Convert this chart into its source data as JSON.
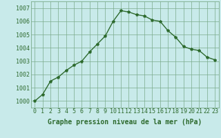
{
  "x": [
    0,
    1,
    2,
    3,
    4,
    5,
    6,
    7,
    8,
    9,
    10,
    11,
    12,
    13,
    14,
    15,
    16,
    17,
    18,
    19,
    20,
    21,
    22,
    23
  ],
  "y": [
    1000.0,
    1000.5,
    1001.5,
    1001.8,
    1002.3,
    1002.7,
    1003.0,
    1003.7,
    1004.3,
    1004.9,
    1006.0,
    1006.8,
    1006.7,
    1006.5,
    1006.4,
    1006.1,
    1006.0,
    1005.3,
    1004.8,
    1004.1,
    1003.9,
    1003.8,
    1003.3,
    1003.1
  ],
  "line_color": "#2d6a2d",
  "marker": "*",
  "marker_size": 3,
  "bg_color": "#c8eaea",
  "grid_color": "#7aaa8a",
  "xlabel": "Graphe pression niveau de la mer (hPa)",
  "xlabel_color": "#2d6a2d",
  "ylim": [
    999.5,
    1007.5
  ],
  "yticks": [
    1000,
    1001,
    1002,
    1003,
    1004,
    1005,
    1006,
    1007
  ],
  "xticks": [
    0,
    1,
    2,
    3,
    4,
    5,
    6,
    7,
    8,
    9,
    10,
    11,
    12,
    13,
    14,
    15,
    16,
    17,
    18,
    19,
    20,
    21,
    22,
    23
  ],
  "tick_label_color": "#2d6a2d",
  "tick_label_fontsize": 6,
  "xlabel_fontsize": 7,
  "linewidth": 1.0
}
